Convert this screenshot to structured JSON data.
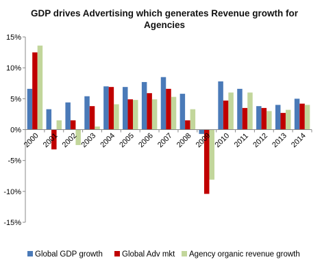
{
  "chart_data": {
    "type": "bar",
    "title": "GDP drives Advertising which generates Revenue growth for Agencies",
    "title_lines": [
      "GDP drives Advertising which generates Revenue growth for",
      "Agencies"
    ],
    "xlabel": "",
    "ylabel": "",
    "ylim": [
      -15,
      15
    ],
    "y_ticks": [
      15,
      10,
      5,
      0,
      -5,
      -10,
      -15
    ],
    "y_tick_labels": [
      "15%",
      "10%",
      "5%",
      "0%",
      "-5%",
      "-10%",
      "-15%"
    ],
    "categories": [
      "2000",
      "2001",
      "2002",
      "2003",
      "2004",
      "2005",
      "2006",
      "2007",
      "2008",
      "2009",
      "2010",
      "2011",
      "2012",
      "2013",
      "2014"
    ],
    "series": [
      {
        "name": "Global GDP growth",
        "color": "#4a7ab8",
        "values": [
          6.6,
          3.3,
          4.4,
          5.4,
          7.0,
          6.9,
          7.7,
          8.5,
          5.8,
          -0.7,
          7.8,
          6.6,
          3.8,
          4.0,
          5.0
        ]
      },
      {
        "name": "Global Adv mkt",
        "color": "#c00000",
        "values": [
          12.5,
          -3.2,
          1.5,
          3.8,
          6.9,
          4.9,
          5.9,
          6.6,
          1.5,
          -10.4,
          4.7,
          3.5,
          3.5,
          2.7,
          4.2
        ]
      },
      {
        "name": "Agency organic revenue growth",
        "color": "#c2d69b",
        "values": [
          13.6,
          1.5,
          -2.5,
          0.5,
          4.1,
          4.8,
          4.9,
          5.3,
          3.3,
          -8.1,
          6.0,
          6.0,
          3.0,
          3.2,
          4.0
        ]
      }
    ],
    "grid": false,
    "legend_position": "bottom"
  }
}
